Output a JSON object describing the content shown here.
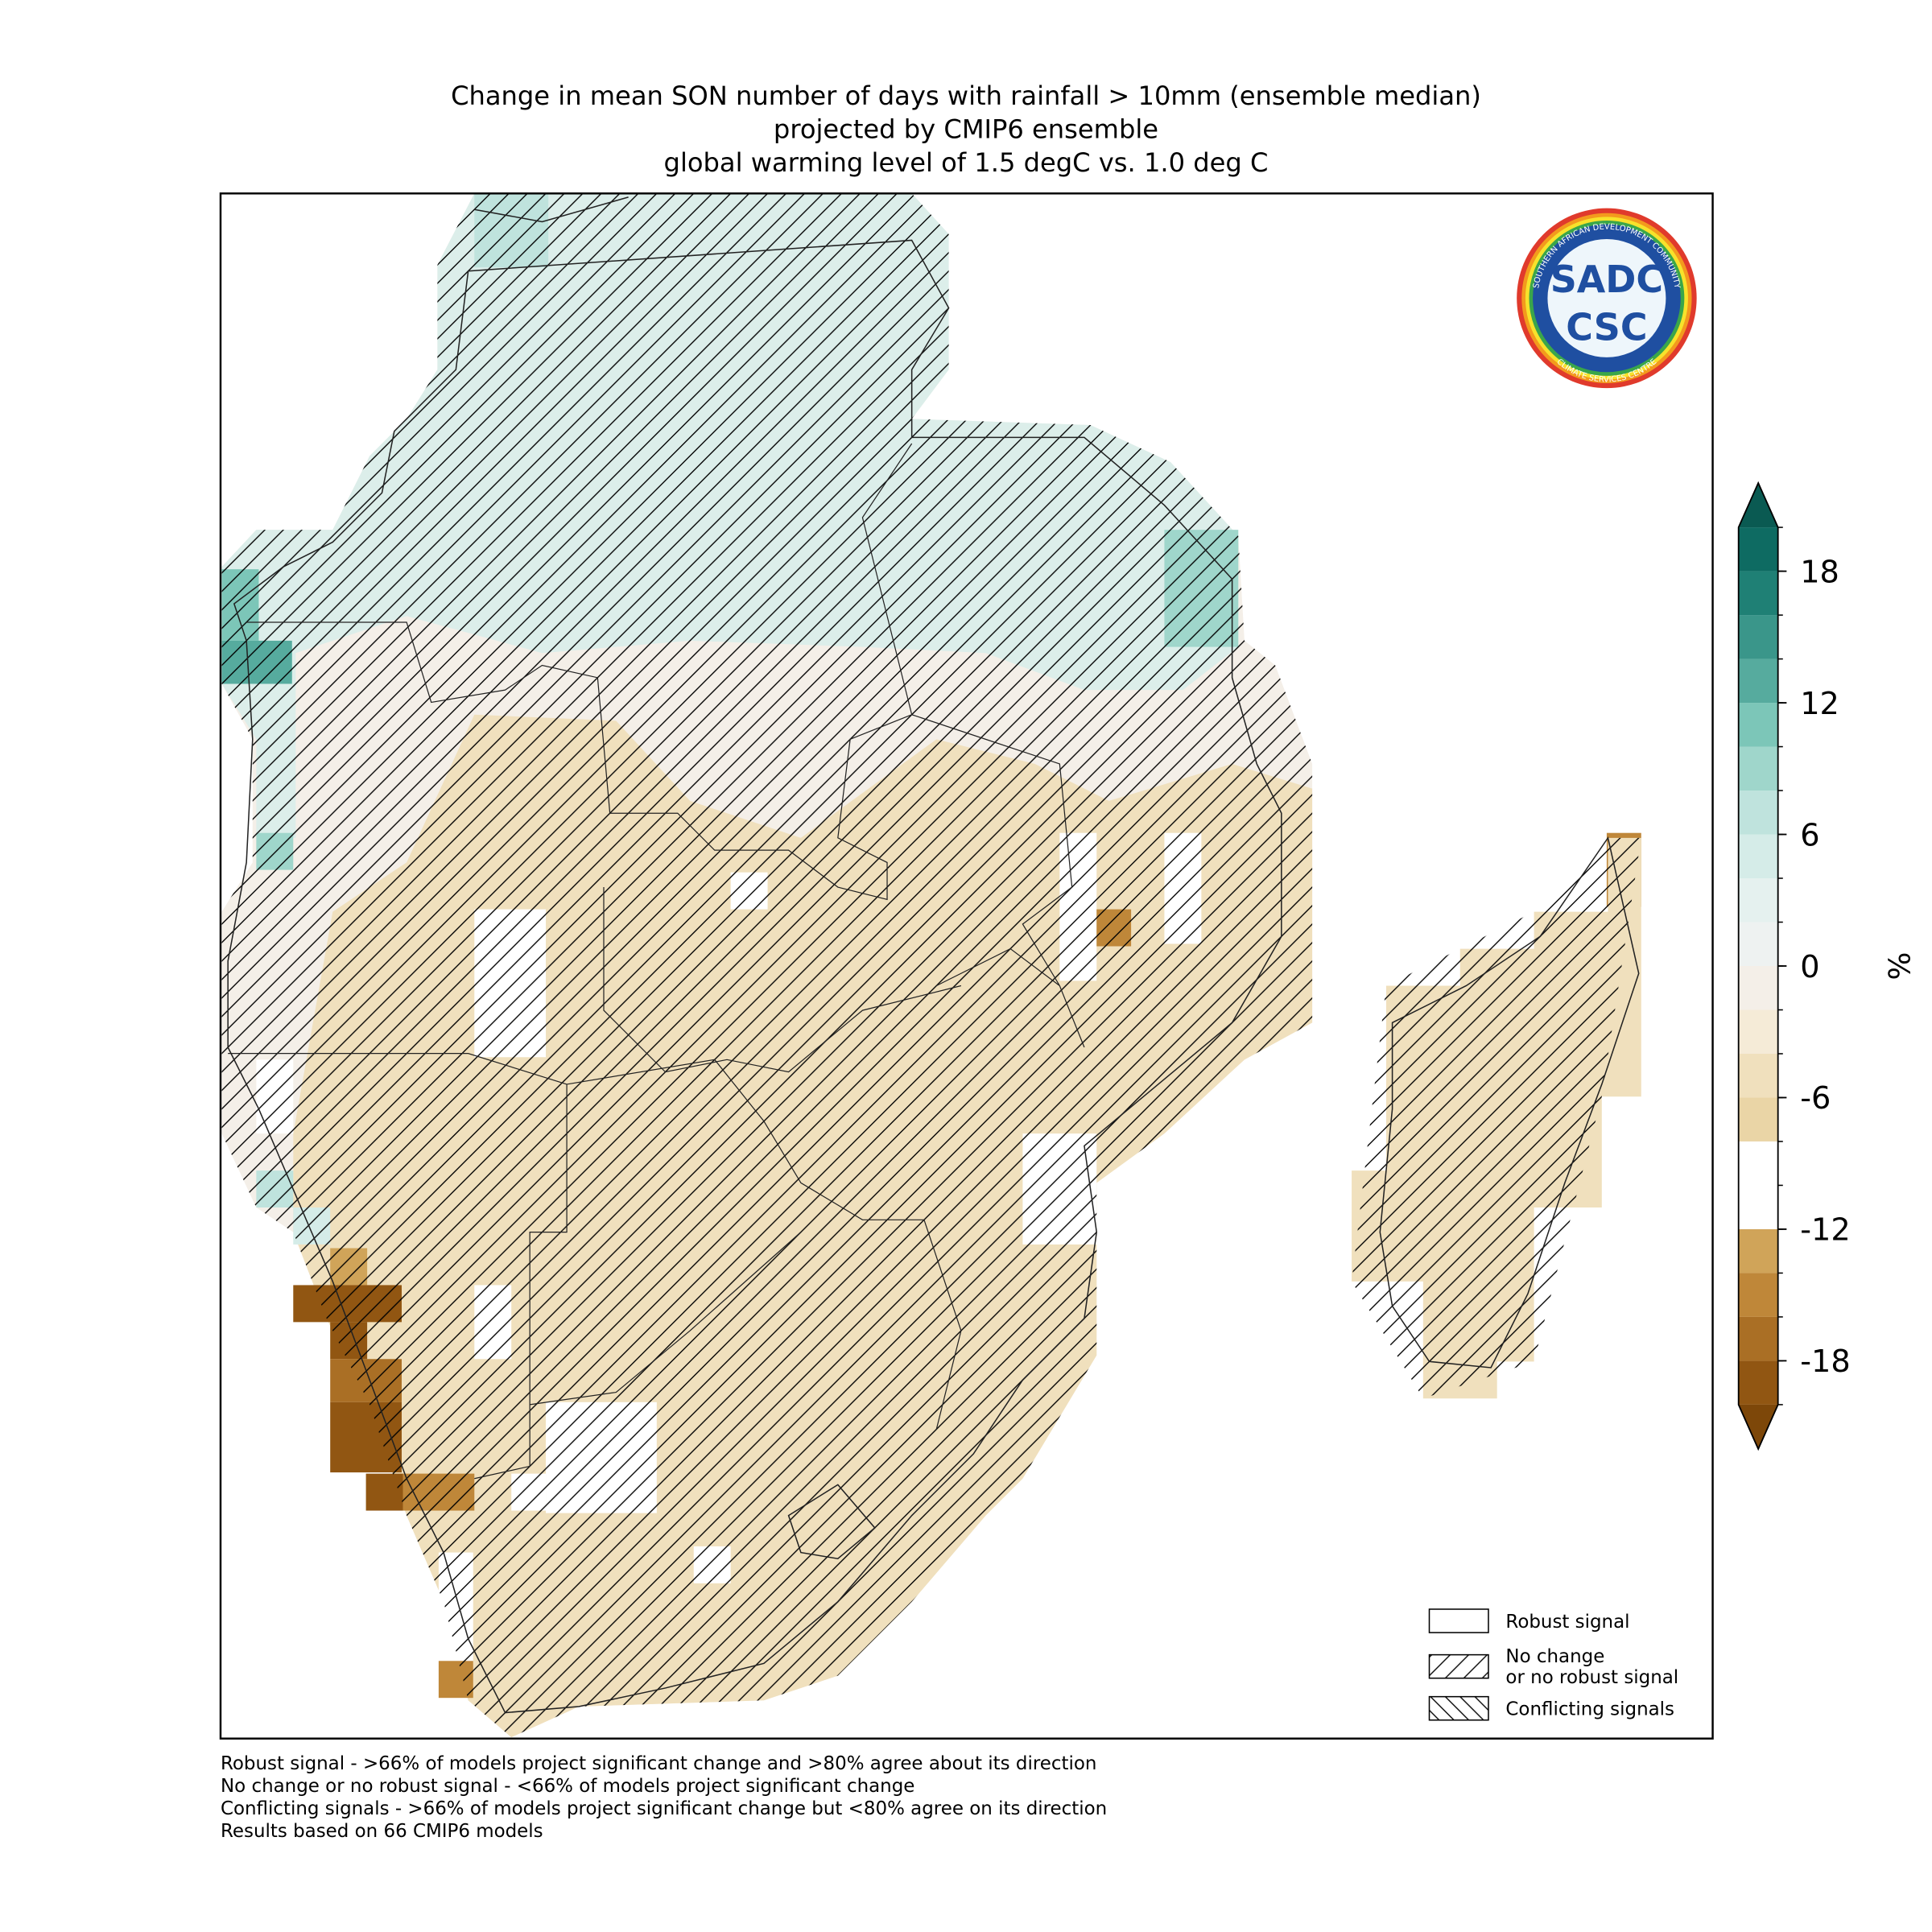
{
  "chart_data": {
    "type": "map",
    "title": [
      "Change in mean SON number of days with rainfall > 10mm (ensemble median)",
      "projected by CMIP6 ensemble",
      "global warming level of 1.5 degC vs. 1.0 deg C"
    ],
    "colorbar": {
      "label": "%",
      "lim": [
        -20,
        20
      ],
      "ticks": [
        -18,
        -12,
        -6,
        0,
        6,
        12,
        18
      ],
      "levels": [
        -20,
        -18,
        -16,
        -14,
        -12,
        -10,
        -8,
        -6,
        -4,
        -2,
        0,
        2,
        4,
        6,
        8,
        10,
        12,
        14,
        16,
        18,
        20
      ],
      "colors": [
        "#915612",
        "#aa6f25",
        "#bf8739",
        "#d0a459",
        "#ffffff",
        "#ffffff",
        "#ead5a6",
        "#f0e0bd",
        "#f5ebd7",
        "#f4efe8",
        "#eef2f1",
        "#e5f1ef",
        "#d5ece8",
        "#bfe3dd",
        "#9fd6cb",
        "#7cc6b8",
        "#56ab9e",
        "#3a968a",
        "#1f8075",
        "#0e6b62"
      ],
      "under_color": "#7d4709",
      "over_color": "#0a5a52"
    },
    "legend": [
      {
        "label": [
          "Robust signal"
        ],
        "hatch": "none"
      },
      {
        "label": [
          "No change",
          "or no robust signal"
        ],
        "hatch": "forward"
      },
      {
        "label": [
          "Conflicting signals"
        ],
        "hatch": "back"
      }
    ],
    "footnotes": [
      "Robust signal - >66% of models project significant change and >80% agree about its direction",
      "No change or no robust signal - <66% of models project significant change",
      "Conflicting signals - >66% of models project significant change but <80% agree on its direction",
      "Results based on 66 CMIP6 models"
    ],
    "logo": {
      "name": "SADC",
      "unit": "CSC",
      "ring_top": "SOUTHERN AFRICAN DEVELOPMENT COMMUNITY",
      "ring_bottom": "CLIMATE SERVICES CENTRE"
    }
  }
}
